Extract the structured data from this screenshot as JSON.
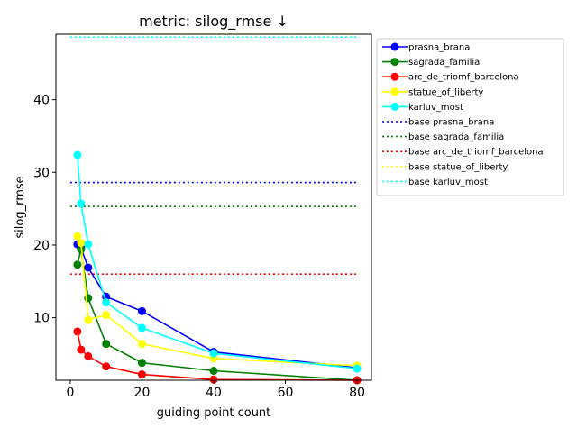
{
  "chart_data": {
    "type": "line",
    "title": "metric: silog_rmse ↓",
    "xlabel": "guiding point count",
    "ylabel": "silog_rmse",
    "xlim": [
      -4,
      84
    ],
    "ylim": [
      1.4,
      49.0
    ],
    "xticks": [
      0,
      20,
      40,
      60,
      80
    ],
    "yticks": [
      10,
      20,
      30,
      40
    ],
    "grid": false,
    "legend_position": "outside-right",
    "series": [
      {
        "name": "prasna_brana",
        "color": "#0000ff",
        "x": [
          2,
          3,
          5,
          10,
          20,
          40,
          80
        ],
        "y": [
          20.1,
          19.6,
          16.9,
          12.9,
          10.9,
          5.3,
          3.1
        ]
      },
      {
        "name": "sagrada_familia",
        "color": "#008000",
        "x": [
          2,
          3,
          5,
          10,
          20,
          40,
          80
        ],
        "y": [
          17.3,
          19.4,
          12.7,
          6.4,
          3.8,
          2.7,
          1.4
        ]
      },
      {
        "name": "arc_de_triomf_barcelona",
        "color": "#ff0000",
        "x": [
          2,
          3,
          5,
          10,
          20,
          40,
          80
        ],
        "y": [
          8.1,
          5.6,
          4.7,
          3.3,
          2.2,
          1.5,
          1.4
        ]
      },
      {
        "name": "statue_of_liberty",
        "color": "#ffff00",
        "x": [
          2,
          3,
          5,
          10,
          20,
          40,
          80
        ],
        "y": [
          21.2,
          20.3,
          9.7,
          10.4,
          6.4,
          4.4,
          3.4
        ]
      },
      {
        "name": "karluv_most",
        "color": "#00ffff",
        "x": [
          2,
          3,
          5,
          10,
          20,
          40,
          80
        ],
        "y": [
          32.4,
          25.7,
          20.1,
          12.1,
          8.6,
          5.1,
          3.0
        ]
      }
    ],
    "baselines": [
      {
        "name": "base prasna_brana",
        "color": "#0000ff",
        "y": 28.6
      },
      {
        "name": "base sagrada_familia",
        "color": "#008000",
        "y": 25.3
      },
      {
        "name": "base arc_de_triomf_barcelona",
        "color": "#ff0000",
        "y": 16.0
      },
      {
        "name": "base statue_of_liberty",
        "color": "#ffff00",
        "y": 49.0
      },
      {
        "name": "base karluv_most",
        "color": "#00ffff",
        "y": 48.6
      }
    ]
  }
}
